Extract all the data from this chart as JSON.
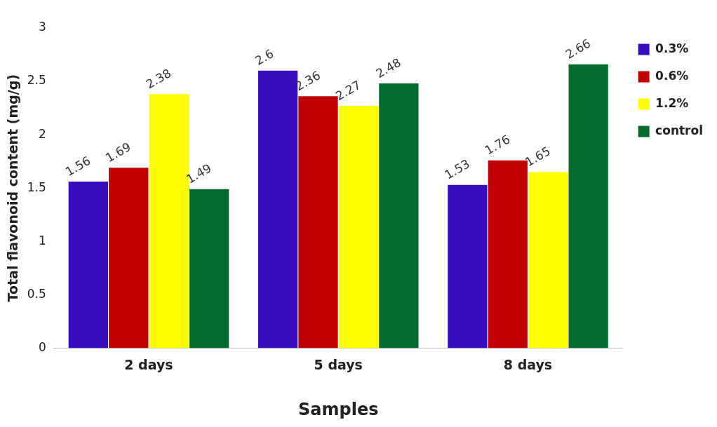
{
  "chart_data": {
    "type": "bar",
    "xlabel": "Samples",
    "ylabel": "Total flavonoid content (mg/g)",
    "categories": [
      "2 days",
      "5 days",
      "8 days"
    ],
    "series": [
      {
        "name": "0.3%",
        "color": "#3a0cbf",
        "values": [
          1.56,
          2.6,
          1.53
        ]
      },
      {
        "name": "0.6%",
        "color": "#c00000",
        "values": [
          1.69,
          2.36,
          1.76
        ]
      },
      {
        "name": "1.2%",
        "color": "#ffff00",
        "values": [
          2.38,
          2.27,
          1.65
        ]
      },
      {
        "name": "control",
        "color": "#036b2c",
        "values": [
          1.49,
          2.48,
          2.66
        ]
      }
    ],
    "ylim": [
      0,
      3
    ],
    "yticks": [
      0,
      0.5,
      1,
      1.5,
      2,
      2.5,
      3
    ],
    "grid": false,
    "legend": "top right",
    "data_labels": true
  }
}
